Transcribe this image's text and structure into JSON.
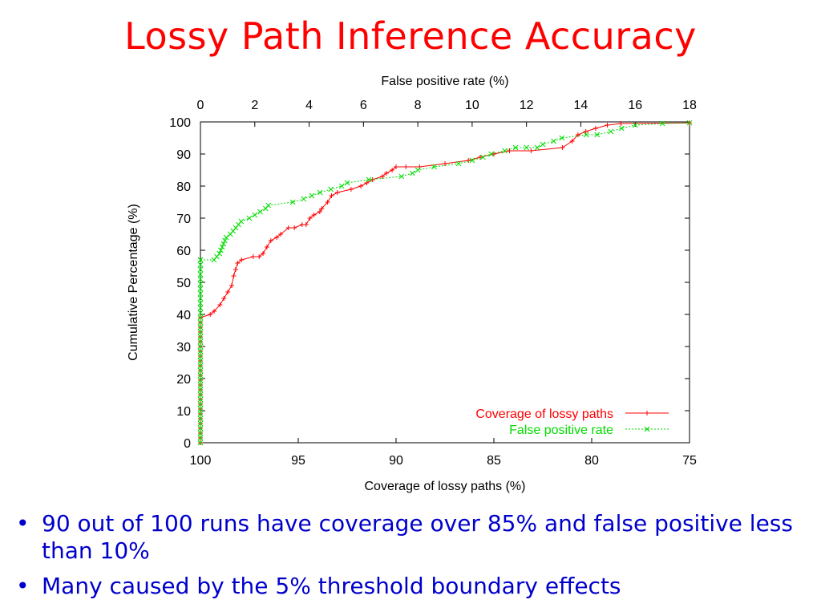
{
  "slide": {
    "title": "Lossy Path Inference Accuracy",
    "bullets": [
      "90 out of 100 runs have coverage over 85% and false positive less than 10%",
      "Many caused by the 5% threshold boundary effects"
    ],
    "bullet_symbol": "•",
    "colors": {
      "title": "#ff0000",
      "bullets": "#0000cc"
    }
  },
  "chart_data": {
    "type": "line",
    "ylabel": "Cumulative Percentage (%)",
    "ylim": [
      0,
      100
    ],
    "yticks": [
      0,
      10,
      20,
      30,
      40,
      50,
      60,
      70,
      80,
      90,
      100
    ],
    "x_bottom": {
      "label": "Coverage of lossy paths (%)",
      "range": [
        100,
        75
      ],
      "ticks": [
        100,
        95,
        90,
        85,
        80,
        75
      ]
    },
    "x_top": {
      "label": "False positive rate (%)",
      "range": [
        0,
        18
      ],
      "ticks": [
        0,
        2,
        4,
        6,
        8,
        10,
        12,
        14,
        16,
        18
      ]
    },
    "grid": false,
    "legend_position": "bottom-right",
    "series": [
      {
        "name": "Coverage of lossy paths",
        "axis": "bottom",
        "color": "#ff0000",
        "marker": "+",
        "points": [
          [
            100,
            0
          ],
          [
            100,
            39
          ],
          [
            99.5,
            40
          ],
          [
            99.3,
            41
          ],
          [
            99,
            43
          ],
          [
            98.8,
            45
          ],
          [
            98.6,
            47
          ],
          [
            98.4,
            49
          ],
          [
            98.3,
            52
          ],
          [
            98.2,
            54
          ],
          [
            98.1,
            56
          ],
          [
            97.9,
            57
          ],
          [
            97.3,
            58
          ],
          [
            97,
            58
          ],
          [
            96.8,
            59
          ],
          [
            96.6,
            61
          ],
          [
            96.4,
            63
          ],
          [
            96.1,
            64
          ],
          [
            95.9,
            65
          ],
          [
            95.5,
            67
          ],
          [
            95.2,
            67
          ],
          [
            94.8,
            68
          ],
          [
            94.6,
            68
          ],
          [
            94.4,
            70
          ],
          [
            94.2,
            71
          ],
          [
            93.9,
            72
          ],
          [
            93.8,
            73
          ],
          [
            93.5,
            75
          ],
          [
            93.3,
            77
          ],
          [
            93,
            78
          ],
          [
            92.3,
            79
          ],
          [
            91.8,
            80
          ],
          [
            91.5,
            81
          ],
          [
            91.2,
            82
          ],
          [
            90.7,
            83
          ],
          [
            90.5,
            84
          ],
          [
            90.2,
            85
          ],
          [
            90,
            86
          ],
          [
            89.5,
            86
          ],
          [
            88.8,
            86
          ],
          [
            87.5,
            87
          ],
          [
            86.3,
            88
          ],
          [
            85.7,
            89
          ],
          [
            85,
            90
          ],
          [
            84.2,
            91
          ],
          [
            83.1,
            91
          ],
          [
            81.5,
            92
          ],
          [
            81,
            94
          ],
          [
            80.7,
            96
          ],
          [
            80.3,
            97
          ],
          [
            79.8,
            98
          ],
          [
            79.2,
            99
          ],
          [
            78.5,
            99.5
          ],
          [
            75,
            99.7
          ]
        ]
      },
      {
        "name": "False positive rate",
        "axis": "top",
        "color": "#00dd00",
        "marker": "x",
        "points": [
          [
            0,
            0
          ],
          [
            0,
            57
          ],
          [
            0.5,
            57
          ],
          [
            0.6,
            58
          ],
          [
            0.7,
            59
          ],
          [
            0.75,
            60
          ],
          [
            0.8,
            61
          ],
          [
            0.85,
            62
          ],
          [
            0.9,
            63
          ],
          [
            0.95,
            64
          ],
          [
            1.1,
            65
          ],
          [
            1.2,
            66
          ],
          [
            1.3,
            67
          ],
          [
            1.4,
            68
          ],
          [
            1.5,
            69
          ],
          [
            1.8,
            70
          ],
          [
            2,
            71
          ],
          [
            2.2,
            72
          ],
          [
            2.4,
            73
          ],
          [
            2.5,
            74
          ],
          [
            3.4,
            75
          ],
          [
            3.8,
            76
          ],
          [
            4.1,
            77
          ],
          [
            4.4,
            78
          ],
          [
            4.8,
            79
          ],
          [
            5.2,
            80
          ],
          [
            5.4,
            81
          ],
          [
            6.2,
            82
          ],
          [
            7.4,
            83
          ],
          [
            7.8,
            84
          ],
          [
            8.0,
            85
          ],
          [
            8.6,
            86
          ],
          [
            9.5,
            87
          ],
          [
            10.0,
            88
          ],
          [
            10.4,
            89
          ],
          [
            10.7,
            90
          ],
          [
            11.2,
            91
          ],
          [
            11.6,
            92
          ],
          [
            12.0,
            92
          ],
          [
            12.4,
            92
          ],
          [
            12.6,
            93
          ],
          [
            13.0,
            94
          ],
          [
            13.3,
            95
          ],
          [
            14.2,
            96
          ],
          [
            14.6,
            96
          ],
          [
            15.1,
            97
          ],
          [
            15.5,
            98
          ],
          [
            16.0,
            99
          ],
          [
            17.0,
            99.5
          ],
          [
            18,
            99.7
          ]
        ]
      }
    ]
  }
}
